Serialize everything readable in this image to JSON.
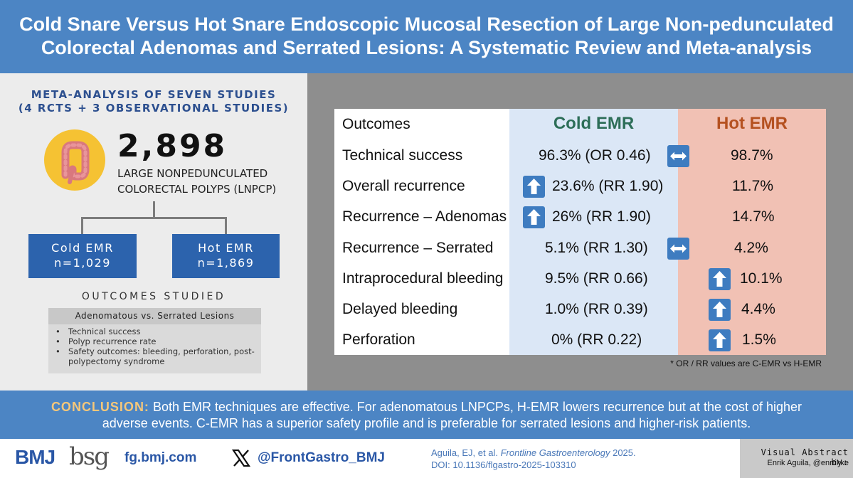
{
  "title": {
    "line1": "Cold Snare Versus Hot Snare Endoscopic Mucosal Resection of Large Non-pedunculated",
    "line2": "Colorectal Adenomas and Serrated Lesions: A Systematic Review and Meta-analysis"
  },
  "left": {
    "meta_line1": "META-ANALYSIS OF SEVEN STUDIES",
    "meta_line2": "(4 RCTS + 3 OBSERVATIONAL STUDIES)",
    "total": "2,898",
    "total_label_line1": "LARGE NONPEDUNCULATED",
    "total_label_line2": "COLORECTAL POLYPS (LNPCP)",
    "cold_box": {
      "label": "Cold EMR",
      "n": "n=1,029"
    },
    "hot_box": {
      "label": "Hot EMR",
      "n": "n=1,869"
    },
    "outcomes_title": "OUTCOMES STUDIED",
    "lesions_bar": "Adenomatous vs. Serrated Lesions",
    "outcomes": [
      "Technical success",
      "Polyp recurrence rate",
      "Safety outcomes: bleeding, perforation, post-polypectomy syndrome"
    ]
  },
  "table": {
    "headers": {
      "outcomes": "Outcomes",
      "cold": "Cold EMR",
      "hot": "Hot EMR"
    },
    "rows": [
      {
        "label": "Technical success",
        "cold": "96.3% (OR 0.46)",
        "hot": "98.7%",
        "indicator": "equal"
      },
      {
        "label": "Overall recurrence",
        "cold": "23.6% (RR 1.90)",
        "hot": "11.7%",
        "indicator": "cold-up"
      },
      {
        "label": "Recurrence – Adenomas",
        "cold": "26% (RR 1.90)",
        "hot": "14.7%",
        "indicator": "cold-up"
      },
      {
        "label": "Recurrence – Serrated",
        "cold": "5.1% (RR 1.30)",
        "hot": "4.2%",
        "indicator": "equal"
      },
      {
        "label": "Intraprocedural bleeding",
        "cold": "9.5% (RR 0.66)",
        "hot": "10.1%",
        "indicator": "hot-up"
      },
      {
        "label": "Delayed bleeding",
        "cold": "1.0% (RR 0.39)",
        "hot": "4.4%",
        "indicator": "hot-up"
      },
      {
        "label": "Perforation",
        "cold": "0% (RR 0.22)",
        "hot": "1.5%",
        "indicator": "hot-up"
      }
    ],
    "footnote": "* OR / RR values are C-EMR vs H-EMR"
  },
  "conclusion": {
    "label": "CONCLUSION:",
    "text": " Both EMR techniques are effective. For adenomatous LNPCPs, H-EMR lowers recurrence but at the cost of higher adverse events. C-EMR has a superior safety profile and is preferable for serrated lesions and higher-risk patients."
  },
  "footer": {
    "bmj": "BMJ",
    "bsg": "bsg",
    "website": "fg.bmj.com",
    "twitter": "@FrontGastro_BMJ",
    "citation_line1_authors": "Aguila, EJ, et al. ",
    "citation_line1_journal": "Frontline Gastroenterology",
    "citation_line1_year": " 2025.",
    "citation_line2": "DOI: 10.1136/flgastro-2025-103310",
    "credit_title": "Visual Abstract by:",
    "credit_name": "Enrik Aguila, @enrrikke"
  },
  "colors": {
    "header_blue": "#4c85c4",
    "dark_blue": "#2c63ad",
    "cold_green": "#2d6e58",
    "hot_orange": "#b55120",
    "icon_blue": "#3e7cc0",
    "colon_yellow": "#f5c233"
  }
}
